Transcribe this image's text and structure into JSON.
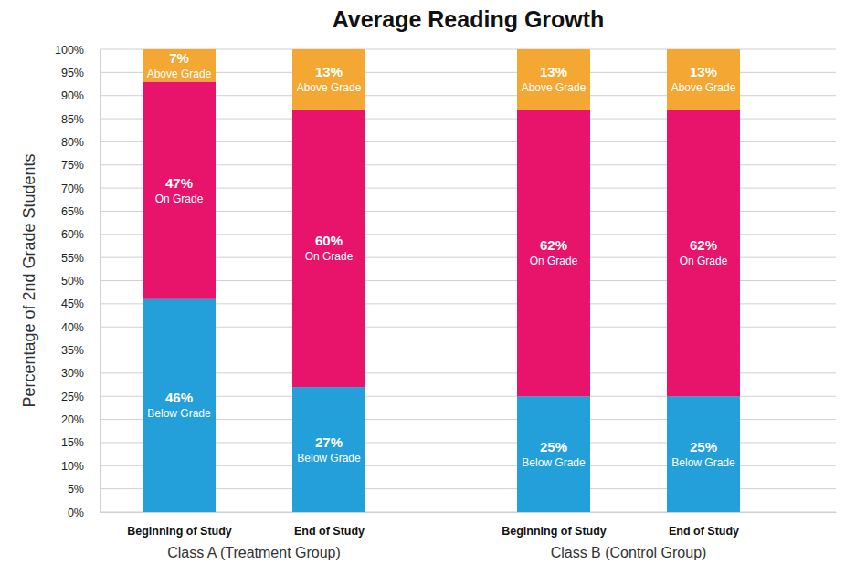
{
  "chart_data": {
    "type": "bar",
    "title": "Average Reading Growth",
    "y_label": "Percentage of 2nd Grade Students",
    "categories": [
      "Beginning of Study",
      "End of Study",
      "Beginning of Study",
      "End of Study"
    ],
    "groups": [
      "Class A (Treatment Group)",
      "Class B (Control Group)"
    ],
    "series": [
      {
        "name": "Below Grade",
        "color": "#239fda",
        "values": [
          46,
          27,
          25,
          25
        ],
        "value_labels": [
          "46%",
          "27%",
          "25%",
          "25%"
        ]
      },
      {
        "name": "On Grade",
        "color": "#e8146b",
        "values": [
          47,
          60,
          62,
          62
        ],
        "value_labels": [
          "47%",
          "60%",
          "62%",
          "62%"
        ]
      },
      {
        "name": "Above Grade",
        "color": "#f5a733",
        "values": [
          7,
          13,
          13,
          13
        ],
        "value_labels": [
          "7%",
          "13%",
          "13%",
          "13%"
        ]
      }
    ],
    "ylim": [
      0,
      100
    ],
    "yticks": [
      {
        "value": 0,
        "label": "0%"
      },
      {
        "value": 5,
        "label": "5%"
      },
      {
        "value": 10,
        "label": "10%"
      },
      {
        "value": 15,
        "label": "15%"
      },
      {
        "value": 20,
        "label": "20%"
      },
      {
        "value": 25,
        "label": "25%"
      },
      {
        "value": 30,
        "label": "30%"
      },
      {
        "value": 35,
        "label": "35%"
      },
      {
        "value": 40,
        "label": "40%"
      },
      {
        "value": 45,
        "label": "45%"
      },
      {
        "value": 50,
        "label": "50%"
      },
      {
        "value": 55,
        "label": "55%"
      },
      {
        "value": 60,
        "label": "60%"
      },
      {
        "value": 65,
        "label": "65%"
      },
      {
        "value": 70,
        "label": "70%"
      },
      {
        "value": 75,
        "label": "75%"
      },
      {
        "value": 80,
        "label": "80%"
      },
      {
        "value": 85,
        "label": "85%"
      },
      {
        "value": 90,
        "label": "90%"
      },
      {
        "value": 95,
        "label": "95%"
      },
      {
        "value": 100,
        "label": "100%"
      }
    ],
    "grid": true,
    "stacked": true,
    "data_labels": true
  }
}
